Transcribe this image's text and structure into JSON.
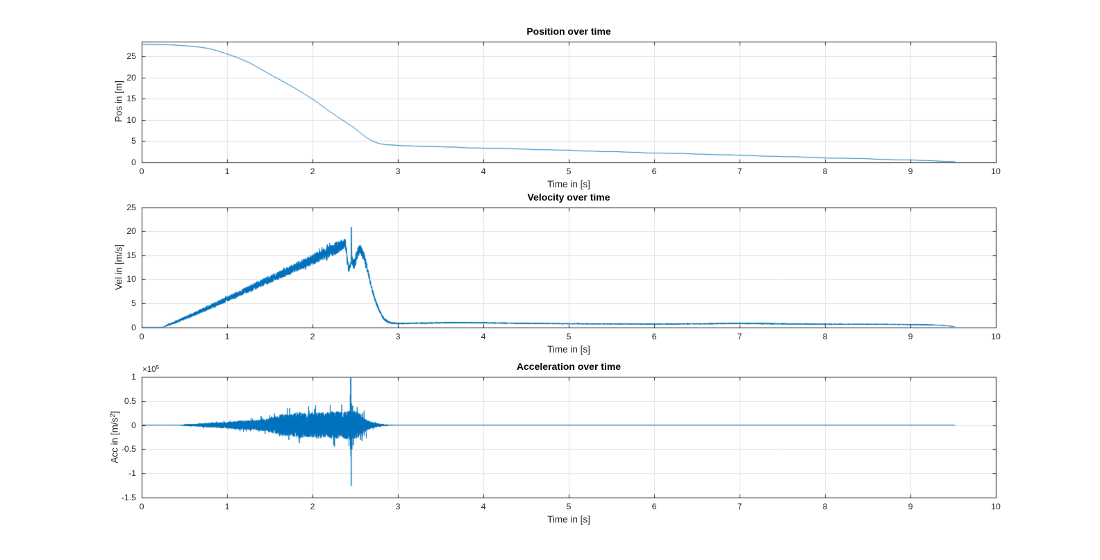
{
  "figure": {
    "background": "#ffffff",
    "line_color": "#0072BD",
    "axis_color": "#262626",
    "grid_color": "#e1e1e1",
    "label_color": "#262626",
    "title_color": "#000000"
  },
  "chart_data": [
    {
      "type": "line",
      "title": "Position over time",
      "xlabel": "Time in [s]",
      "ylabel": "Pos in [m]",
      "xlim": [
        0,
        10
      ],
      "ylim": [
        0,
        28.6
      ],
      "grid": true,
      "xticks": [
        0,
        1,
        2,
        3,
        4,
        5,
        6,
        7,
        8,
        9,
        10
      ],
      "yticks": [
        0,
        5,
        10,
        15,
        20,
        25
      ],
      "xtick_labels": [
        "0",
        "1",
        "2",
        "3",
        "4",
        "5",
        "6",
        "7",
        "8",
        "9",
        "10"
      ],
      "ytick_labels": [
        "0",
        "5",
        "10",
        "15",
        "20",
        "25"
      ],
      "series": [
        {
          "name": "position",
          "keypoints": [
            [
              0,
              27.85
            ],
            [
              0.25,
              27.8
            ],
            [
              0.5,
              27.55
            ],
            [
              0.75,
              27.0
            ],
            [
              1.0,
              25.6
            ],
            [
              1.25,
              23.6
            ],
            [
              1.5,
              20.8
            ],
            [
              1.75,
              18.0
            ],
            [
              2.0,
              14.9
            ],
            [
              2.25,
              11.3
            ],
            [
              2.5,
              7.9
            ],
            [
              2.6,
              6.3
            ],
            [
              2.7,
              5.0
            ],
            [
              2.8,
              4.3
            ],
            [
              2.9,
              4.05
            ],
            [
              3.0,
              3.95
            ],
            [
              3.5,
              3.6
            ],
            [
              4.0,
              3.3
            ],
            [
              4.5,
              3.05
            ],
            [
              5.0,
              2.75
            ],
            [
              5.5,
              2.45
            ],
            [
              6.0,
              2.15
            ],
            [
              6.5,
              1.9
            ],
            [
              7.0,
              1.6
            ],
            [
              7.5,
              1.3
            ],
            [
              8.0,
              1.0
            ],
            [
              8.5,
              0.75
            ],
            [
              9.0,
              0.45
            ],
            [
              9.25,
              0.3
            ],
            [
              9.45,
              0.18
            ],
            [
              9.52,
              0.12
            ]
          ],
          "wobble_amp": 0.05,
          "dt": 0.01,
          "t_end": 9.52
        }
      ]
    },
    {
      "type": "line",
      "title": "Velocity over time",
      "xlabel": "Time in [s]",
      "ylabel": "Vel in [m/s]",
      "xlim": [
        0,
        10
      ],
      "ylim": [
        0,
        25
      ],
      "grid": true,
      "xticks": [
        0,
        1,
        2,
        3,
        4,
        5,
        6,
        7,
        8,
        9,
        10
      ],
      "yticks": [
        0,
        5,
        10,
        15,
        20,
        25
      ],
      "xtick_labels": [
        "0",
        "1",
        "2",
        "3",
        "4",
        "5",
        "6",
        "7",
        "8",
        "9",
        "10"
      ],
      "ytick_labels": [
        "0",
        "5",
        "10",
        "15",
        "20",
        "25"
      ],
      "series": [
        {
          "name": "velocity",
          "mean_keypoints": [
            [
              0,
              0.02
            ],
            [
              0.24,
              0.02
            ],
            [
              0.3,
              0.4
            ],
            [
              0.5,
              1.85
            ],
            [
              0.75,
              3.8
            ],
            [
              1.0,
              5.85
            ],
            [
              1.25,
              7.9
            ],
            [
              1.5,
              9.95
            ],
            [
              1.75,
              12.0
            ],
            [
              2.0,
              14.05
            ],
            [
              2.2,
              15.8
            ],
            [
              2.3,
              16.7
            ],
            [
              2.38,
              17.35
            ],
            [
              2.425,
              12.2
            ],
            [
              2.449,
              13.4
            ],
            [
              2.4555,
              20.8
            ],
            [
              2.462,
              13.9
            ],
            [
              2.49,
              13.2
            ],
            [
              2.52,
              15.1
            ],
            [
              2.56,
              16.0
            ],
            [
              2.6,
              14.8
            ],
            [
              2.65,
              11.5
            ],
            [
              2.7,
              7.7
            ],
            [
              2.75,
              4.9
            ],
            [
              2.8,
              2.9
            ],
            [
              2.85,
              1.5
            ],
            [
              2.92,
              0.9
            ],
            [
              3.0,
              0.78
            ],
            [
              3.3,
              0.85
            ],
            [
              3.7,
              0.95
            ],
            [
              4.0,
              0.9
            ],
            [
              4.5,
              0.8
            ],
            [
              5.0,
              0.72
            ],
            [
              5.5,
              0.68
            ],
            [
              6.0,
              0.65
            ],
            [
              6.5,
              0.7
            ],
            [
              7.0,
              0.78
            ],
            [
              7.5,
              0.7
            ],
            [
              8.0,
              0.62
            ],
            [
              8.5,
              0.6
            ],
            [
              9.0,
              0.55
            ],
            [
              9.2,
              0.5
            ],
            [
              9.35,
              0.4
            ],
            [
              9.45,
              0.25
            ],
            [
              9.52,
              0.1
            ]
          ],
          "noise_keypoints": [
            [
              0,
              0
            ],
            [
              0.24,
              0.01
            ],
            [
              0.3,
              0.18
            ],
            [
              0.5,
              0.35
            ],
            [
              1.0,
              0.55
            ],
            [
              1.5,
              0.8
            ],
            [
              2.0,
              1.1
            ],
            [
              2.3,
              1.3
            ],
            [
              2.38,
              1.0
            ],
            [
              2.45,
              0.5
            ],
            [
              2.47,
              1.0
            ],
            [
              2.55,
              1.15
            ],
            [
              2.62,
              0.8
            ],
            [
              2.7,
              0.45
            ],
            [
              2.8,
              0.3
            ],
            [
              2.9,
              0.2
            ],
            [
              3.2,
              0.14
            ],
            [
              4.0,
              0.13
            ],
            [
              5.0,
              0.11
            ],
            [
              6.0,
              0.11
            ],
            [
              7.0,
              0.14
            ],
            [
              8.0,
              0.11
            ],
            [
              9.0,
              0.1
            ],
            [
              9.3,
              0.08
            ],
            [
              9.52,
              0.04
            ]
          ],
          "dt": 0.001,
          "t_end": 9.52,
          "seed": 42
        }
      ]
    },
    {
      "type": "line",
      "title": "Acceleration over time",
      "xlabel": "Time in [s]",
      "ylabel_pre": "Acc in [m/s",
      "ylabel_sup": "2",
      "ylabel_post": "]",
      "offset": {
        "base": "×10",
        "exp": "5"
      },
      "xlim": [
        0,
        10
      ],
      "ylim": [
        -1.5,
        1
      ],
      "unit_scale": "1e5",
      "grid": true,
      "xticks": [
        0,
        1,
        2,
        3,
        4,
        5,
        6,
        7,
        8,
        9,
        10
      ],
      "yticks": [
        -1.5,
        -1,
        -0.5,
        0,
        0.5,
        1
      ],
      "xtick_labels": [
        "0",
        "1",
        "2",
        "3",
        "4",
        "5",
        "6",
        "7",
        "8",
        "9",
        "10"
      ],
      "ytick_labels": [
        "-1.5",
        "-1",
        "-0.5",
        "0",
        "0.5",
        "1"
      ],
      "series": [
        {
          "name": "acceleration",
          "envelope_keypoints": [
            [
              0,
              0.003
            ],
            [
              0.42,
              0.003
            ],
            [
              0.5,
              0.013
            ],
            [
              0.65,
              0.028
            ],
            [
              0.8,
              0.045
            ],
            [
              1.0,
              0.065
            ],
            [
              1.15,
              0.09
            ],
            [
              1.3,
              0.1
            ],
            [
              1.45,
              0.13
            ],
            [
              1.55,
              0.17
            ],
            [
              1.65,
              0.23
            ],
            [
              1.75,
              0.22
            ],
            [
              1.85,
              0.28
            ],
            [
              1.95,
              0.25
            ],
            [
              2.05,
              0.28
            ],
            [
              2.15,
              0.26
            ],
            [
              2.25,
              0.29
            ],
            [
              2.35,
              0.27
            ],
            [
              2.45,
              0.31
            ],
            [
              2.52,
              0.28
            ],
            [
              2.55,
              0.26
            ],
            [
              2.6,
              0.15
            ],
            [
              2.65,
              0.1
            ],
            [
              2.7,
              0.06
            ],
            [
              2.78,
              0.03
            ],
            [
              2.85,
              0.012
            ],
            [
              2.95,
              0.005
            ],
            [
              3.2,
              0.004
            ],
            [
              9.52,
              0.004
            ]
          ],
          "spikes": [
            [
              2.442,
              0.62
            ],
            [
              2.4442,
              -0.5
            ],
            [
              2.447,
              1.05
            ],
            [
              2.4492,
              -0.65
            ],
            [
              2.4512,
              0.95
            ],
            [
              2.4533,
              -1.26
            ],
            [
              2.456,
              0.45
            ],
            [
              2.462,
              -0.5
            ],
            [
              2.47,
              0.4
            ],
            [
              2.478,
              -0.42
            ],
            [
              2.58,
              -0.33
            ],
            [
              2.605,
              0.3
            ],
            [
              2.63,
              -0.27
            ]
          ],
          "dt": 0.0005,
          "t_end": 9.52,
          "seed": 7
        }
      ]
    }
  ]
}
